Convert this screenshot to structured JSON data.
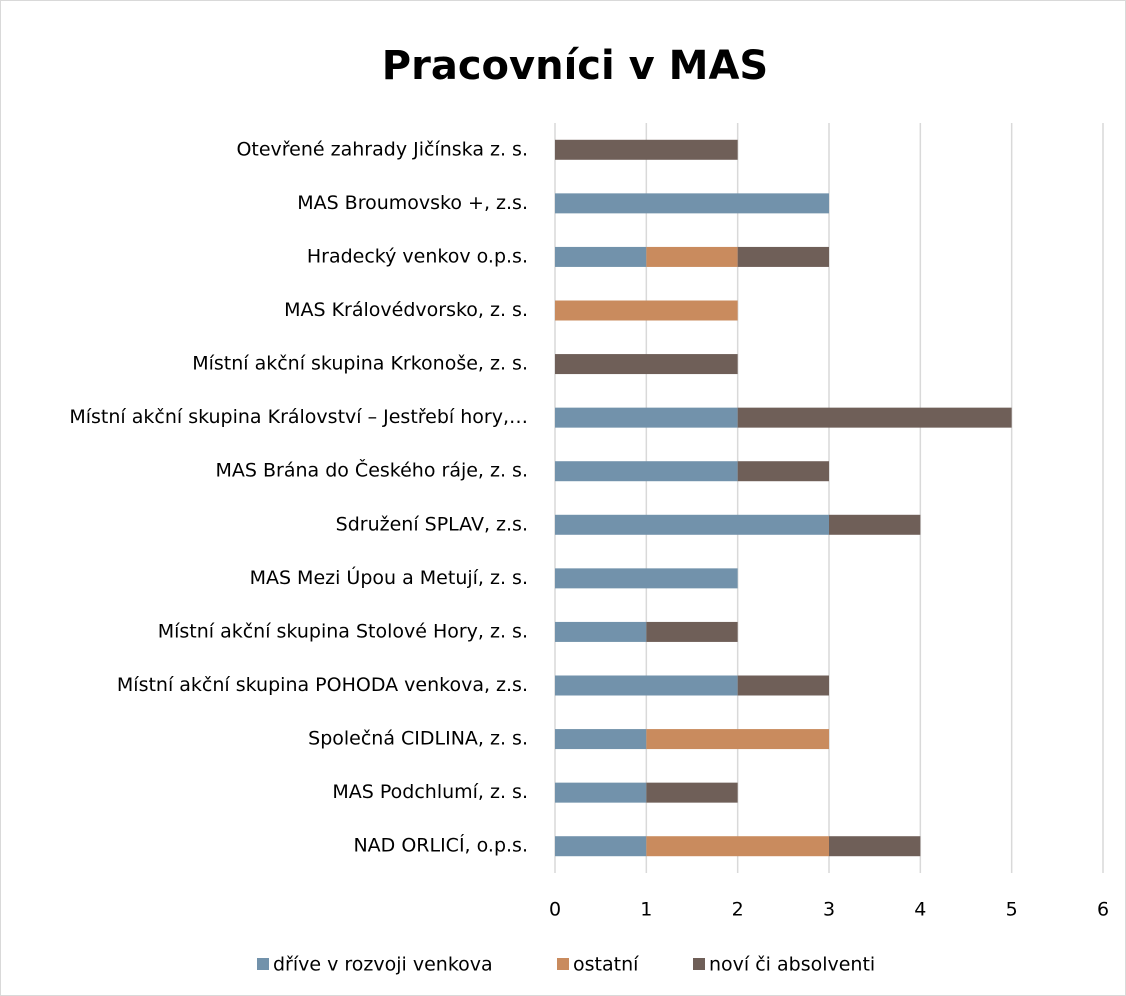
{
  "chart_data": {
    "type": "stacked-barh",
    "title": "Pracovníci v MAS",
    "categories": [
      "Otevřené zahrady Jičínska z. s.",
      "MAS Broumovsko +, z.s.",
      "Hradecký venkov o.p.s.",
      "MAS Královédvorsko, z. s.",
      "Místní akční skupina Krkonoše, z. s.",
      "Místní akční skupina Království – Jestřebí hory,…",
      "MAS Brána do Českého ráje, z. s.",
      "Sdružení SPLAV, z.s.",
      "MAS Mezi Úpou a Metují, z. s.",
      "Místní akční skupina Stolové Hory, z. s.",
      "Místní akční skupina POHODA venkova, z.s.",
      "Společná  CIDLINA, z. s.",
      "MAS Podchlumí, z. s.",
      "NAD ORLICÍ, o.p.s."
    ],
    "series": [
      {
        "name": "dříve v rozvoji venkova",
        "color": "#7292ab",
        "values": [
          0,
          3,
          1,
          0,
          0,
          2,
          2,
          3,
          2,
          1,
          2,
          1,
          1,
          1
        ]
      },
      {
        "name": "ostatní",
        "color": "#c98b5e",
        "values": [
          0,
          0,
          1,
          2,
          0,
          0,
          0,
          0,
          0,
          0,
          0,
          2,
          0,
          2
        ]
      },
      {
        "name": "noví či absolventi",
        "color": "#6f5f58",
        "values": [
          2,
          0,
          1,
          0,
          2,
          3,
          1,
          1,
          0,
          1,
          1,
          0,
          1,
          1
        ]
      }
    ],
    "xlim": [
      0,
      6
    ],
    "xticks": [
      0,
      1,
      2,
      3,
      4,
      5,
      6
    ],
    "grid": true,
    "legend": "bottom"
  }
}
